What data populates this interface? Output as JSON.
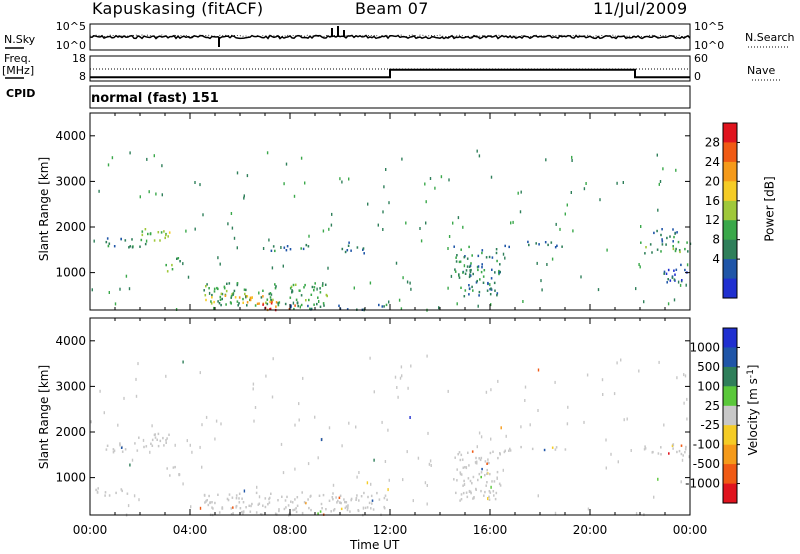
{
  "header": {
    "station": "Kapuskasing (fitACF)",
    "beam": "Beam 07",
    "date": "11/Jul/2009"
  },
  "left_labels": {
    "nsky": "N.Sky",
    "freq": "Freq.",
    "mhz": "[MHz]",
    "cpid": "CPID"
  },
  "right_labels": {
    "nsearch": "N.Search",
    "nave": "Nave"
  },
  "cpid_text": "normal (fast) 151",
  "noise_axis": {
    "left_ticks": [
      "10^5",
      "10^0"
    ],
    "right_ticks": [
      "10^5",
      "10^0"
    ]
  },
  "freq_axis": {
    "left_ticks": [
      "18",
      "8"
    ],
    "right_ticks": [
      "60",
      "0"
    ]
  },
  "x_axis": {
    "label": "Time UT",
    "ticks": [
      "00:00",
      "04:00",
      "08:00",
      "12:00",
      "16:00",
      "20:00",
      "00:00"
    ]
  },
  "chart_data": [
    {
      "type": "heatmap",
      "name": "power",
      "ylabel": "Slant Range [km]",
      "yticks": [
        1000,
        2000,
        3000,
        4000
      ],
      "ylim": [
        180,
        4500
      ],
      "xlim_hours": [
        0,
        24
      ],
      "colorbar": {
        "label": "Power [dB]",
        "ticks": [
          "28",
          "24",
          "20",
          "16",
          "12",
          "8",
          "4"
        ],
        "colors": [
          "#e0141e",
          "#f05a14",
          "#f59a1a",
          "#f5cc26",
          "#9fc83a",
          "#3aa84a",
          "#2f7f5a",
          "#2056a8",
          "#2030d0"
        ]
      },
      "regions": [
        {
          "t0": 0.4,
          "t1": 2.3,
          "r0": 1580,
          "r1": 1780,
          "level": 8
        },
        {
          "t0": 1.8,
          "t1": 3.2,
          "r0": 1700,
          "r1": 2000,
          "level": 14
        },
        {
          "t0": 3.0,
          "t1": 3.6,
          "r0": 1050,
          "r1": 1350,
          "level": 12
        },
        {
          "t0": 4.5,
          "t1": 9.5,
          "r0": 300,
          "r1": 800,
          "level": 10
        },
        {
          "t0": 4.6,
          "t1": 7.5,
          "r0": 340,
          "r1": 520,
          "level": 20
        },
        {
          "t0": 6.8,
          "t1": 8.2,
          "r0": 200,
          "r1": 400,
          "level": 28
        },
        {
          "t0": 8.0,
          "t1": 12.0,
          "r0": 200,
          "r1": 320,
          "level": 8
        },
        {
          "t0": 7.2,
          "t1": 9.0,
          "r0": 1500,
          "r1": 1650,
          "level": 6
        },
        {
          "t0": 10.0,
          "t1": 11.0,
          "r0": 1450,
          "r1": 1700,
          "level": 6
        },
        {
          "t0": 14.5,
          "t1": 16.4,
          "r0": 500,
          "r1": 1600,
          "level": 8
        },
        {
          "t0": 16.5,
          "t1": 19.0,
          "r0": 1580,
          "r1": 1700,
          "level": 6
        },
        {
          "t0": 22.0,
          "t1": 24.0,
          "r0": 1450,
          "r1": 1700,
          "level": 10
        },
        {
          "t0": 22.3,
          "t1": 23.5,
          "r0": 1700,
          "r1": 2000,
          "level": 6
        },
        {
          "t0": 22.8,
          "t1": 24.0,
          "r0": 800,
          "r1": 1200,
          "level": 4
        }
      ]
    },
    {
      "type": "heatmap",
      "name": "velocity",
      "ylabel": "Slant Range [km]",
      "yticks": [
        1000,
        2000,
        3000,
        4000
      ],
      "ylim": [
        180,
        4500
      ],
      "xlim_hours": [
        0,
        24
      ],
      "colorbar": {
        "label": "Velocity [m s^-1]",
        "ticks": [
          "1000",
          "500",
          "100",
          "25",
          "-25",
          "-100",
          "-500",
          "-1000"
        ],
        "colors": [
          "#2030d0",
          "#2056a8",
          "#2f7f5a",
          "#5ac83a",
          "#c8c8c8",
          "#f5cc26",
          "#f59a1a",
          "#f05a14",
          "#e0141e"
        ]
      },
      "regions": [
        {
          "t0": 0.4,
          "t1": 2.3,
          "r0": 1580,
          "r1": 1780,
          "level": 0
        },
        {
          "t0": 1.8,
          "t1": 3.2,
          "r0": 1700,
          "r1": 2000,
          "level": 0
        },
        {
          "t0": 3.0,
          "t1": 3.6,
          "r0": 1050,
          "r1": 1350,
          "level": 0
        },
        {
          "t0": 0.2,
          "t1": 1.5,
          "r0": 600,
          "r1": 800,
          "level": 0
        },
        {
          "t0": 4.5,
          "t1": 12.0,
          "r0": 200,
          "r1": 700,
          "level": 0
        },
        {
          "t0": 14.5,
          "t1": 16.4,
          "r0": 500,
          "r1": 1600,
          "level": 0
        },
        {
          "t0": 16.5,
          "t1": 19.0,
          "r0": 1580,
          "r1": 1700,
          "level": 0
        },
        {
          "t0": 22.0,
          "t1": 24.0,
          "r0": 1500,
          "r1": 1750,
          "level": 0
        }
      ]
    },
    {
      "type": "line",
      "name": "freq",
      "series": [
        {
          "x": [
            0,
            12,
            12,
            21.8,
            21.8,
            24
          ],
          "y": [
            9.5,
            9.5,
            12.5,
            12.5,
            9.5,
            9.5
          ]
        }
      ],
      "ylim": [
        8,
        18
      ]
    },
    {
      "type": "line",
      "name": "noise",
      "series": [
        {
          "x": [
            0,
            24
          ],
          "y": [
            2.8,
            2.8
          ]
        }
      ],
      "ylim": [
        0,
        5
      ]
    }
  ]
}
